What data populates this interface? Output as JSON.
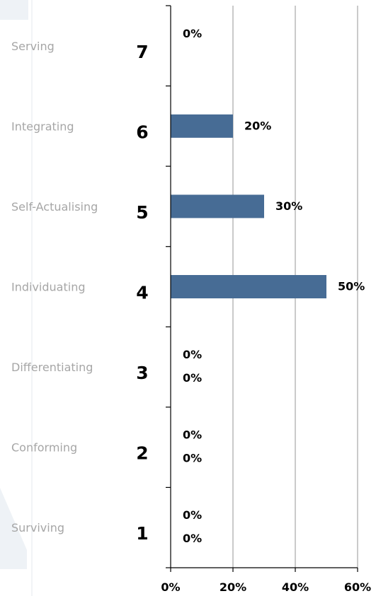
{
  "chart_data": {
    "type": "bar",
    "orientation": "horizontal",
    "categories": [
      "7",
      "6",
      "5",
      "4",
      "3",
      "2",
      "1"
    ],
    "category_names": [
      "Serving",
      "Integrating",
      "Self-Actualising",
      "Individuating",
      "Differentiating",
      "Conforming",
      "Surviving"
    ],
    "series": [
      {
        "values": [
          0,
          20,
          30,
          50,
          0,
          0,
          0
        ]
      },
      {
        "values": [
          null,
          null,
          null,
          null,
          0,
          0,
          0
        ]
      }
    ],
    "data_labels": [
      [
        "0%",
        "20%",
        "30%",
        "50%",
        "0%",
        "0%",
        "0%"
      ],
      [
        null,
        null,
        null,
        null,
        "0%",
        "0%",
        "0%"
      ]
    ],
    "x_ticks": [
      "0%",
      "20%",
      "40%",
      "60%"
    ],
    "xlim": [
      0,
      60
    ],
    "grid": true,
    "colors": {
      "bar": "#476c95",
      "grid": "#a6a6a6",
      "axis": "#000000",
      "label": "#a6a6a6",
      "watermark": "#eef2f6"
    }
  }
}
